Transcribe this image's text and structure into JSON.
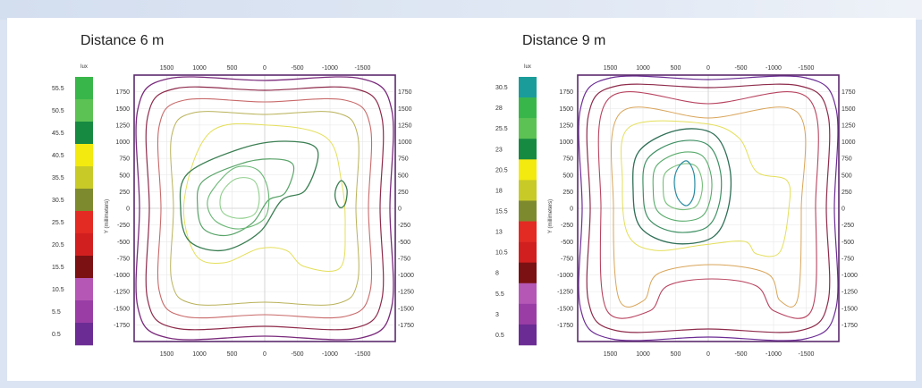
{
  "chart_data": [
    {
      "type": "contour",
      "title": "Distance 6 m",
      "unit": "lux",
      "ylabel": "Y (millimeters)",
      "x_ticks": [
        1500,
        1000,
        500,
        0,
        -500,
        -1000,
        -1500
      ],
      "y_ticks": [
        1750,
        1500,
        1250,
        1000,
        750,
        500,
        250,
        0,
        -250,
        -500,
        -750,
        -1000,
        -1250,
        -1500,
        -1750
      ],
      "xlim": [
        2000,
        -2000
      ],
      "ylim": [
        -2000,
        2000
      ],
      "grid": true,
      "legend_levels": [
        55.5,
        50.5,
        45.5,
        40.5,
        35.5,
        30.5,
        25.5,
        20.5,
        15.5,
        10.5,
        5.5,
        0.5
      ],
      "legend_colors": [
        "#39b64a",
        "#5dc254",
        "#178a42",
        "#f3ea10",
        "#c8ca28",
        "#7e8a2e",
        "#e32a23",
        "#d11f1f",
        "#7b1113",
        "#b557b5",
        "#9a3ea6",
        "#6b2c94"
      ]
    },
    {
      "type": "contour",
      "title": "Distance 9 m",
      "unit": "lux",
      "ylabel": "Y (millimeters)",
      "x_ticks": [
        1500,
        1000,
        500,
        0,
        -500,
        -1000,
        -1500
      ],
      "y_ticks": [
        1750,
        1500,
        1250,
        1000,
        750,
        500,
        250,
        0,
        -250,
        -500,
        -750,
        -1000,
        -1250,
        -1500,
        -1750
      ],
      "xlim": [
        2000,
        -2000
      ],
      "ylim": [
        -2000,
        2000
      ],
      "grid": true,
      "legend_levels": [
        30.5,
        28,
        25.5,
        23,
        20.5,
        18,
        15.5,
        13,
        10.5,
        8,
        5.5,
        3,
        0.5
      ],
      "legend_colors": [
        "#1a9c9a",
        "#39b64a",
        "#5dc254",
        "#178a42",
        "#f3ea10",
        "#c8ca28",
        "#7e8a2e",
        "#e32a23",
        "#d11f1f",
        "#7b1113",
        "#b557b5",
        "#9a3ea6",
        "#6b2c94"
      ]
    }
  ]
}
